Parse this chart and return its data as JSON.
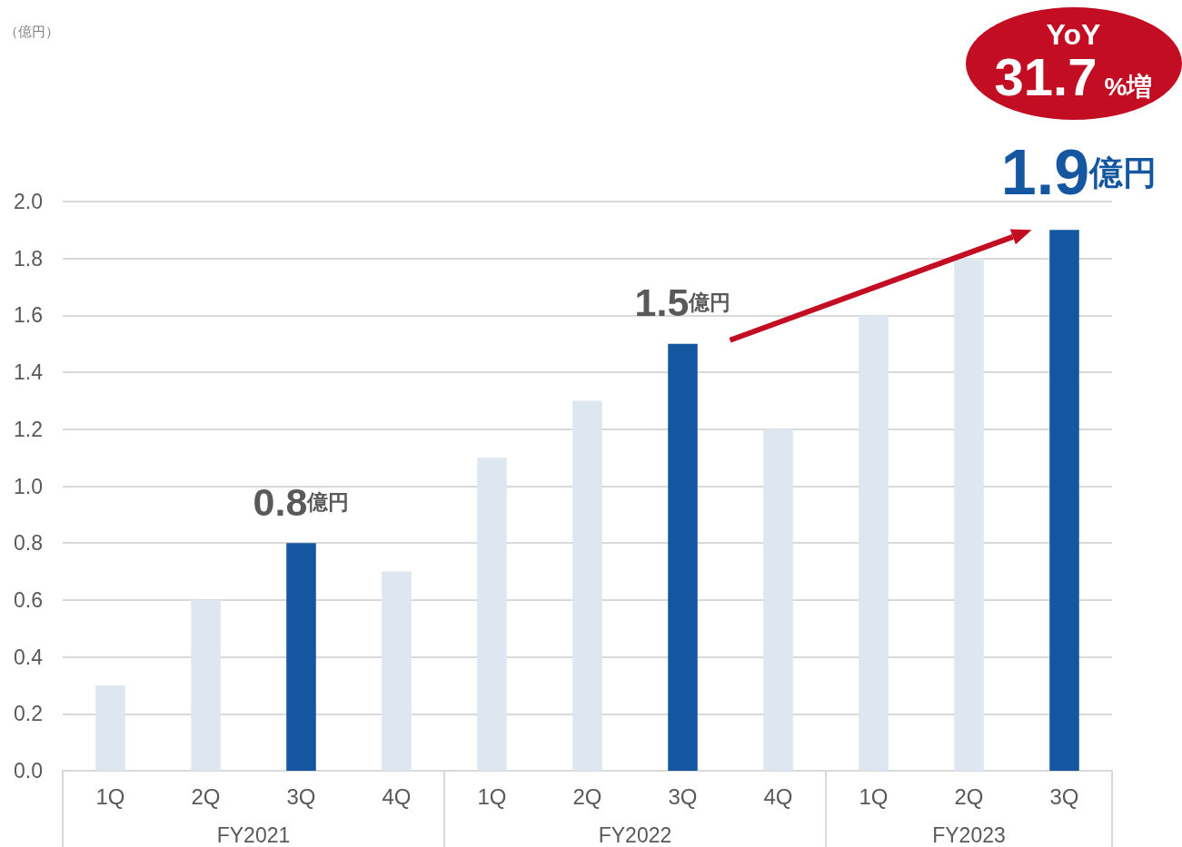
{
  "chart_data": {
    "type": "bar",
    "categories": [
      "1Q",
      "2Q",
      "3Q",
      "4Q",
      "1Q",
      "2Q",
      "3Q",
      "4Q",
      "1Q",
      "2Q",
      "3Q"
    ],
    "values": [
      0.3,
      0.6,
      0.8,
      0.7,
      1.1,
      1.3,
      1.5,
      1.2,
      1.6,
      1.8,
      1.9
    ],
    "colors": [
      "#dee6f0",
      "#dee6f0",
      "#1456a0",
      "#dee6f0",
      "#dee6f0",
      "#dee6f0",
      "#1456a0",
      "#dee6f0",
      "#dee6f0",
      "#dee6f0",
      "#1456a0"
    ],
    "value_labels": [
      null,
      null,
      "0.8億円",
      null,
      null,
      null,
      "1.5億円",
      null,
      null,
      null,
      "1.9億円"
    ],
    "ylim": [
      0,
      2
    ],
    "yticks": [
      {
        "value": 0,
        "label": "0.0"
      },
      0.2,
      0.4,
      0.6,
      0.8,
      {
        "value": 1,
        "label": "1.0"
      },
      1.2,
      1.4,
      1.6,
      1.8,
      {
        "value": 2,
        "label": "2.0"
      }
    ],
    "grid": "y",
    "annotations": [
      "（億円）",
      "FY2021",
      "FY2022",
      "FY2023",
      "YoY 31.7%増"
    ]
  }
}
